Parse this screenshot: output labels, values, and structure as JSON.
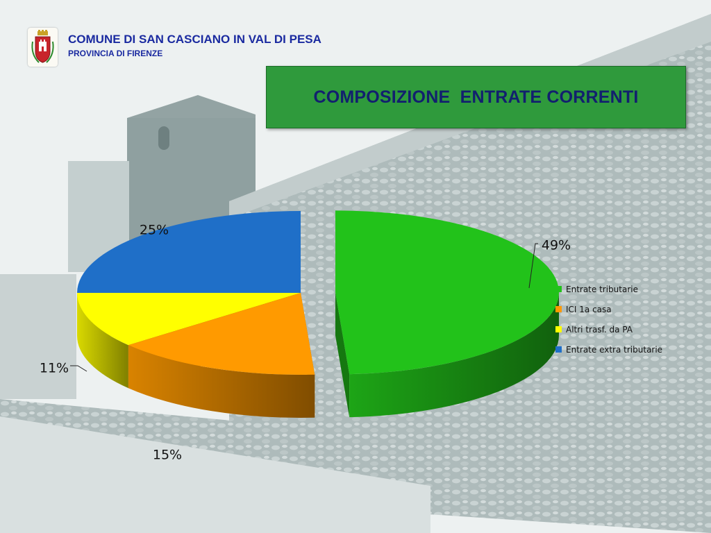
{
  "header": {
    "org_name": "COMUNE DI SAN CASCIANO IN VAL DI PESA",
    "org_sub": "PROVINCIA DI FIRENZE"
  },
  "chart_data": {
    "type": "pie",
    "title": "COMPOSIZIONE  ENTRATE CORRENTI",
    "categories": [
      "Entrate tributarie",
      "ICI 1a casa",
      "Altri trasf. da PA",
      "Entrate extra tributarie"
    ],
    "values": [
      49,
      15,
      11,
      25
    ],
    "labels": [
      "49%",
      "15%",
      "11%",
      "25%"
    ],
    "colors": [
      "#22c21a",
      "#ff9a00",
      "#ffff00",
      "#1f6fc8"
    ],
    "legend": "right",
    "style": "3d-exploded"
  },
  "icons": {
    "crest": "municipal-crest-icon"
  }
}
